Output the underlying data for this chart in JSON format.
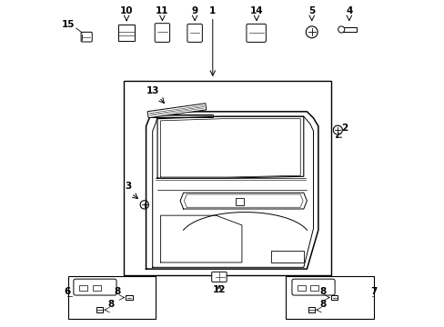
{
  "bg_color": "#ffffff",
  "fig_width": 4.89,
  "fig_height": 3.6,
  "dpi": 100,
  "line_color": "#000000",
  "text_color": "#000000",
  "part_font_size": 7.5
}
